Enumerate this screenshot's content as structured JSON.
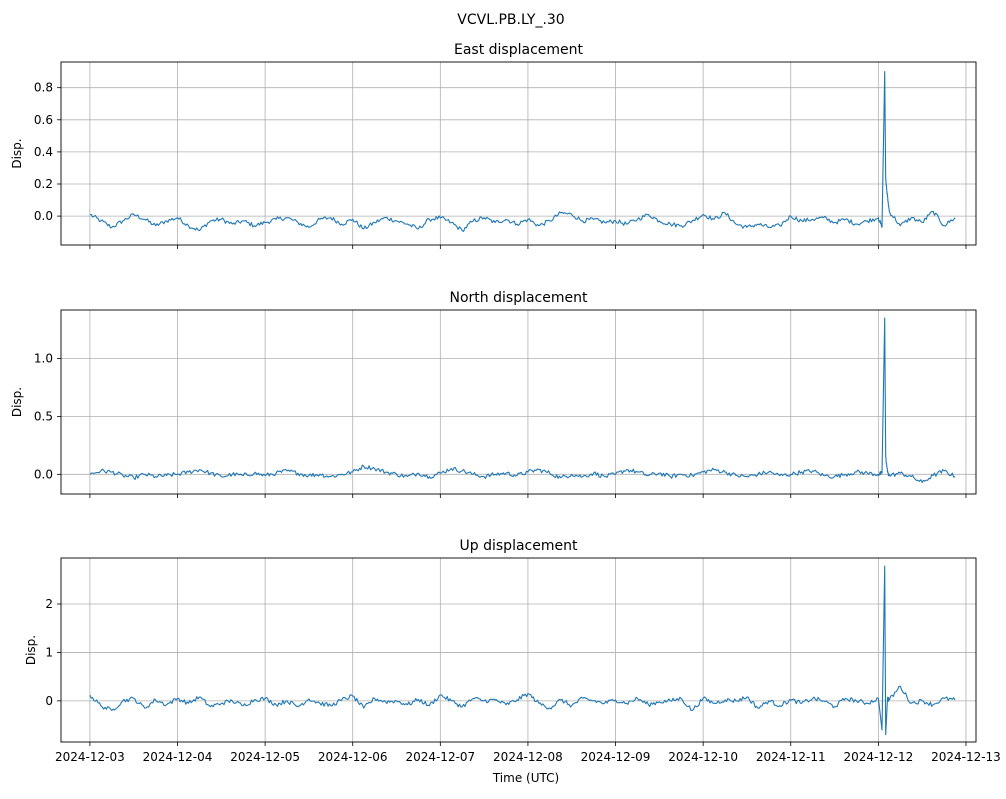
{
  "figure": {
    "suptitle": "VCVL.PB.LY_.30",
    "xlabel": "Time (UTC)"
  },
  "chart_data": [
    {
      "type": "line",
      "title": "East displacement",
      "xlabel": "",
      "ylabel": "Disp.",
      "x_ticks": [
        "2024-12-03",
        "2024-12-04",
        "2024-12-05",
        "2024-12-06",
        "2024-12-07",
        "2024-12-08",
        "2024-12-09",
        "2024-12-10",
        "2024-12-11",
        "2024-12-12",
        "2024-12-13"
      ],
      "y_ticks": [
        "0.0",
        "0.2",
        "0.4",
        "0.6",
        "0.8"
      ],
      "xlim": [
        "2024-12-02T16:05",
        "2024-12-13T02:45"
      ],
      "ylim": [
        -0.18,
        0.96
      ],
      "grid": true,
      "color": "#1f77b4",
      "series": [
        {
          "x": [
            "2024-12-03T00:00",
            "2024-12-03T03:00",
            "2024-12-03T06:00",
            "2024-12-03T09:00",
            "2024-12-03T12:00",
            "2024-12-03T15:00",
            "2024-12-03T18:00",
            "2024-12-03T21:00",
            "2024-12-04T00:00",
            "2024-12-04T03:00",
            "2024-12-04T06:00",
            "2024-12-04T09:00",
            "2024-12-04T12:00",
            "2024-12-04T15:00",
            "2024-12-04T18:00",
            "2024-12-04T21:00",
            "2024-12-05T00:00",
            "2024-12-05T03:00",
            "2024-12-05T06:00",
            "2024-12-05T09:00",
            "2024-12-05T12:00",
            "2024-12-05T15:00",
            "2024-12-05T18:00",
            "2024-12-05T21:00",
            "2024-12-06T00:00",
            "2024-12-06T03:00",
            "2024-12-06T06:00",
            "2024-12-06T09:00",
            "2024-12-06T12:00",
            "2024-12-06T15:00",
            "2024-12-06T18:00",
            "2024-12-06T21:00",
            "2024-12-07T00:00",
            "2024-12-07T03:00",
            "2024-12-07T06:00",
            "2024-12-07T09:00",
            "2024-12-07T12:00",
            "2024-12-07T15:00",
            "2024-12-07T18:00",
            "2024-12-07T21:00",
            "2024-12-08T00:00",
            "2024-12-08T03:00",
            "2024-12-08T06:00",
            "2024-12-08T09:00",
            "2024-12-08T12:00",
            "2024-12-08T15:00",
            "2024-12-08T18:00",
            "2024-12-08T21:00",
            "2024-12-09T00:00",
            "2024-12-09T03:00",
            "2024-12-09T06:00",
            "2024-12-09T09:00",
            "2024-12-09T12:00",
            "2024-12-09T15:00",
            "2024-12-09T18:00",
            "2024-12-09T21:00",
            "2024-12-10T00:00",
            "2024-12-10T03:00",
            "2024-12-10T06:00",
            "2024-12-10T09:00",
            "2024-12-10T12:00",
            "2024-12-10T15:00",
            "2024-12-10T18:00",
            "2024-12-10T21:00",
            "2024-12-11T00:00",
            "2024-12-11T03:00",
            "2024-12-11T06:00",
            "2024-12-11T09:00",
            "2024-12-11T12:00",
            "2024-12-11T15:00",
            "2024-12-11T18:00",
            "2024-12-11T21:00",
            "2024-12-12T00:00",
            "2024-12-12T01:00",
            "2024-12-12T01:45",
            "2024-12-12T02:00",
            "2024-12-12T02:30",
            "2024-12-12T03:00",
            "2024-12-12T06:00",
            "2024-12-12T09:00",
            "2024-12-12T12:00",
            "2024-12-12T15:00",
            "2024-12-12T18:00",
            "2024-12-12T21:00"
          ],
          "y": [
            0.01,
            -0.03,
            -0.07,
            -0.03,
            0.01,
            -0.02,
            -0.06,
            -0.03,
            -0.01,
            -0.06,
            -0.09,
            -0.03,
            -0.02,
            -0.05,
            -0.03,
            -0.06,
            -0.04,
            -0.02,
            -0.01,
            -0.04,
            -0.07,
            -0.02,
            -0.01,
            -0.05,
            -0.02,
            -0.08,
            -0.04,
            -0.01,
            -0.03,
            -0.05,
            -0.08,
            -0.02,
            -0.01,
            -0.04,
            -0.09,
            -0.03,
            -0.01,
            -0.04,
            -0.02,
            -0.05,
            -0.02,
            -0.06,
            -0.03,
            0.02,
            0.01,
            -0.03,
            -0.02,
            -0.04,
            -0.03,
            -0.05,
            -0.02,
            0.01,
            -0.03,
            -0.05,
            -0.06,
            -0.03,
            0.01,
            -0.02,
            0.02,
            -0.05,
            -0.07,
            -0.05,
            -0.07,
            -0.06,
            0.0,
            -0.03,
            -0.02,
            -0.01,
            -0.04,
            -0.02,
            -0.05,
            -0.03,
            -0.01,
            -0.07,
            0.9,
            0.23,
            0.12,
            0.03,
            -0.06,
            -0.01,
            -0.04,
            0.03,
            -0.06,
            -0.01
          ]
        }
      ]
    },
    {
      "type": "line",
      "title": "North displacement",
      "xlabel": "",
      "ylabel": "Disp.",
      "x_ticks": [
        "2024-12-03",
        "2024-12-04",
        "2024-12-05",
        "2024-12-06",
        "2024-12-07",
        "2024-12-08",
        "2024-12-09",
        "2024-12-10",
        "2024-12-11",
        "2024-12-12",
        "2024-12-13"
      ],
      "y_ticks": [
        "0.0",
        "0.5",
        "1.0"
      ],
      "xlim": [
        "2024-12-02T16:05",
        "2024-12-13T02:45"
      ],
      "ylim": [
        -0.17,
        1.42
      ],
      "grid": true,
      "color": "#1f77b4",
      "series": [
        {
          "x": [
            "2024-12-03T00:00",
            "2024-12-03T03:00",
            "2024-12-03T06:00",
            "2024-12-03T09:00",
            "2024-12-03T12:00",
            "2024-12-03T15:00",
            "2024-12-03T18:00",
            "2024-12-03T21:00",
            "2024-12-04T00:00",
            "2024-12-04T03:00",
            "2024-12-04T06:00",
            "2024-12-04T09:00",
            "2024-12-04T12:00",
            "2024-12-04T15:00",
            "2024-12-04T18:00",
            "2024-12-04T21:00",
            "2024-12-05T00:00",
            "2024-12-05T03:00",
            "2024-12-05T06:00",
            "2024-12-05T09:00",
            "2024-12-05T12:00",
            "2024-12-05T15:00",
            "2024-12-05T18:00",
            "2024-12-05T21:00",
            "2024-12-06T00:00",
            "2024-12-06T03:00",
            "2024-12-06T06:00",
            "2024-12-06T09:00",
            "2024-12-06T12:00",
            "2024-12-06T15:00",
            "2024-12-06T18:00",
            "2024-12-06T21:00",
            "2024-12-07T00:00",
            "2024-12-07T03:00",
            "2024-12-07T06:00",
            "2024-12-07T09:00",
            "2024-12-07T12:00",
            "2024-12-07T15:00",
            "2024-12-07T18:00",
            "2024-12-07T21:00",
            "2024-12-08T00:00",
            "2024-12-08T03:00",
            "2024-12-08T06:00",
            "2024-12-08T09:00",
            "2024-12-08T12:00",
            "2024-12-08T15:00",
            "2024-12-08T18:00",
            "2024-12-08T21:00",
            "2024-12-09T00:00",
            "2024-12-09T03:00",
            "2024-12-09T06:00",
            "2024-12-09T09:00",
            "2024-12-09T12:00",
            "2024-12-09T15:00",
            "2024-12-09T18:00",
            "2024-12-09T21:00",
            "2024-12-10T00:00",
            "2024-12-10T03:00",
            "2024-12-10T06:00",
            "2024-12-10T09:00",
            "2024-12-10T12:00",
            "2024-12-10T15:00",
            "2024-12-10T18:00",
            "2024-12-10T21:00",
            "2024-12-11T00:00",
            "2024-12-11T03:00",
            "2024-12-11T06:00",
            "2024-12-11T09:00",
            "2024-12-11T12:00",
            "2024-12-11T15:00",
            "2024-12-11T18:00",
            "2024-12-11T21:00",
            "2024-12-12T00:00",
            "2024-12-12T01:00",
            "2024-12-12T01:45",
            "2024-12-12T02:00",
            "2024-12-12T02:30",
            "2024-12-12T03:00",
            "2024-12-12T06:00",
            "2024-12-12T09:00",
            "2024-12-12T12:00",
            "2024-12-12T15:00",
            "2024-12-12T18:00",
            "2024-12-12T21:00"
          ],
          "y": [
            0.0,
            0.03,
            0.02,
            -0.01,
            -0.03,
            0.0,
            -0.02,
            -0.01,
            0.0,
            0.02,
            0.04,
            0.01,
            -0.02,
            0.0,
            -0.01,
            0.01,
            -0.01,
            0.01,
            0.03,
            0.01,
            -0.01,
            0.0,
            -0.02,
            0.0,
            0.02,
            0.07,
            0.05,
            0.02,
            0.0,
            -0.02,
            0.01,
            -0.02,
            0.01,
            0.05,
            0.03,
            0.0,
            -0.02,
            0.0,
            0.01,
            -0.01,
            0.02,
            0.04,
            0.01,
            -0.03,
            0.0,
            -0.02,
            0.01,
            -0.02,
            0.0,
            0.04,
            0.02,
            -0.01,
            0.01,
            -0.02,
            0.0,
            -0.01,
            0.02,
            0.04,
            0.02,
            -0.01,
            -0.02,
            0.0,
            0.02,
            -0.01,
            0.0,
            0.02,
            0.03,
            -0.01,
            -0.02,
            0.0,
            0.02,
            0.01,
            0.0,
            0.01,
            1.35,
            0.15,
            0.02,
            -0.01,
            0.01,
            -0.02,
            -0.07,
            -0.01,
            0.03,
            -0.02
          ]
        }
      ]
    },
    {
      "type": "line",
      "title": "Up displacement",
      "xlabel": "Time (UTC)",
      "ylabel": "Disp.",
      "x_ticks": [
        "2024-12-03",
        "2024-12-04",
        "2024-12-05",
        "2024-12-06",
        "2024-12-07",
        "2024-12-08",
        "2024-12-09",
        "2024-12-10",
        "2024-12-11",
        "2024-12-12",
        "2024-12-13"
      ],
      "y_ticks": [
        "0",
        "1",
        "2"
      ],
      "xlim": [
        "2024-12-02T16:05",
        "2024-12-13T02:45"
      ],
      "ylim": [
        -0.85,
        2.95
      ],
      "grid": true,
      "color": "#1f77b4",
      "series": [
        {
          "x": [
            "2024-12-03T00:00",
            "2024-12-03T03:00",
            "2024-12-03T06:00",
            "2024-12-03T09:00",
            "2024-12-03T12:00",
            "2024-12-03T15:00",
            "2024-12-03T18:00",
            "2024-12-03T21:00",
            "2024-12-04T00:00",
            "2024-12-04T03:00",
            "2024-12-04T06:00",
            "2024-12-04T09:00",
            "2024-12-04T12:00",
            "2024-12-04T15:00",
            "2024-12-04T18:00",
            "2024-12-04T21:00",
            "2024-12-05T00:00",
            "2024-12-05T03:00",
            "2024-12-05T06:00",
            "2024-12-05T09:00",
            "2024-12-05T12:00",
            "2024-12-05T15:00",
            "2024-12-05T18:00",
            "2024-12-05T21:00",
            "2024-12-06T00:00",
            "2024-12-06T03:00",
            "2024-12-06T06:00",
            "2024-12-06T09:00",
            "2024-12-06T12:00",
            "2024-12-06T15:00",
            "2024-12-06T18:00",
            "2024-12-06T21:00",
            "2024-12-07T00:00",
            "2024-12-07T03:00",
            "2024-12-07T06:00",
            "2024-12-07T09:00",
            "2024-12-07T12:00",
            "2024-12-07T15:00",
            "2024-12-07T18:00",
            "2024-12-07T21:00",
            "2024-12-08T00:00",
            "2024-12-08T03:00",
            "2024-12-08T06:00",
            "2024-12-08T09:00",
            "2024-12-08T12:00",
            "2024-12-08T15:00",
            "2024-12-08T18:00",
            "2024-12-08T21:00",
            "2024-12-09T00:00",
            "2024-12-09T03:00",
            "2024-12-09T06:00",
            "2024-12-09T09:00",
            "2024-12-09T12:00",
            "2024-12-09T15:00",
            "2024-12-09T18:00",
            "2024-12-09T21:00",
            "2024-12-10T00:00",
            "2024-12-10T03:00",
            "2024-12-10T06:00",
            "2024-12-10T09:00",
            "2024-12-10T12:00",
            "2024-12-10T15:00",
            "2024-12-10T18:00",
            "2024-12-10T21:00",
            "2024-12-11T00:00",
            "2024-12-11T03:00",
            "2024-12-11T06:00",
            "2024-12-11T09:00",
            "2024-12-11T12:00",
            "2024-12-11T15:00",
            "2024-12-11T18:00",
            "2024-12-11T21:00",
            "2024-12-12T00:00",
            "2024-12-12T01:00",
            "2024-12-12T01:45",
            "2024-12-12T02:00",
            "2024-12-12T02:30",
            "2024-12-12T03:00",
            "2024-12-12T06:00",
            "2024-12-12T09:00",
            "2024-12-12T12:00",
            "2024-12-12T15:00",
            "2024-12-12T18:00",
            "2024-12-12T21:00"
          ],
          "y": [
            0.12,
            -0.1,
            -0.2,
            0.0,
            0.05,
            -0.15,
            0.02,
            -0.08,
            0.05,
            -0.05,
            0.08,
            -0.12,
            -0.05,
            0.0,
            -0.1,
            0.02,
            0.05,
            -0.08,
            0.0,
            -0.12,
            0.04,
            -0.05,
            -0.1,
            0.02,
            0.1,
            -0.15,
            0.05,
            -0.02,
            0.0,
            -0.08,
            0.03,
            -0.1,
            0.12,
            0.0,
            -0.12,
            0.05,
            0.0,
            0.02,
            -0.08,
            0.02,
            0.15,
            -0.05,
            -0.15,
            0.02,
            -0.1,
            0.05,
            0.0,
            -0.05,
            0.02,
            -0.05,
            0.05,
            -0.08,
            -0.02,
            0.0,
            0.05,
            -0.2,
            0.05,
            -0.05,
            0.02,
            0.0,
            0.08,
            -0.15,
            0.0,
            -0.1,
            0.02,
            -0.05,
            0.05,
            0.0,
            -0.12,
            0.05,
            0.0,
            -0.05,
            0.05,
            -0.6,
            2.78,
            -0.7,
            0.05,
            0.02,
            0.3,
            -0.05,
            0.0,
            -0.08,
            0.05,
            0.02
          ]
        }
      ]
    }
  ]
}
